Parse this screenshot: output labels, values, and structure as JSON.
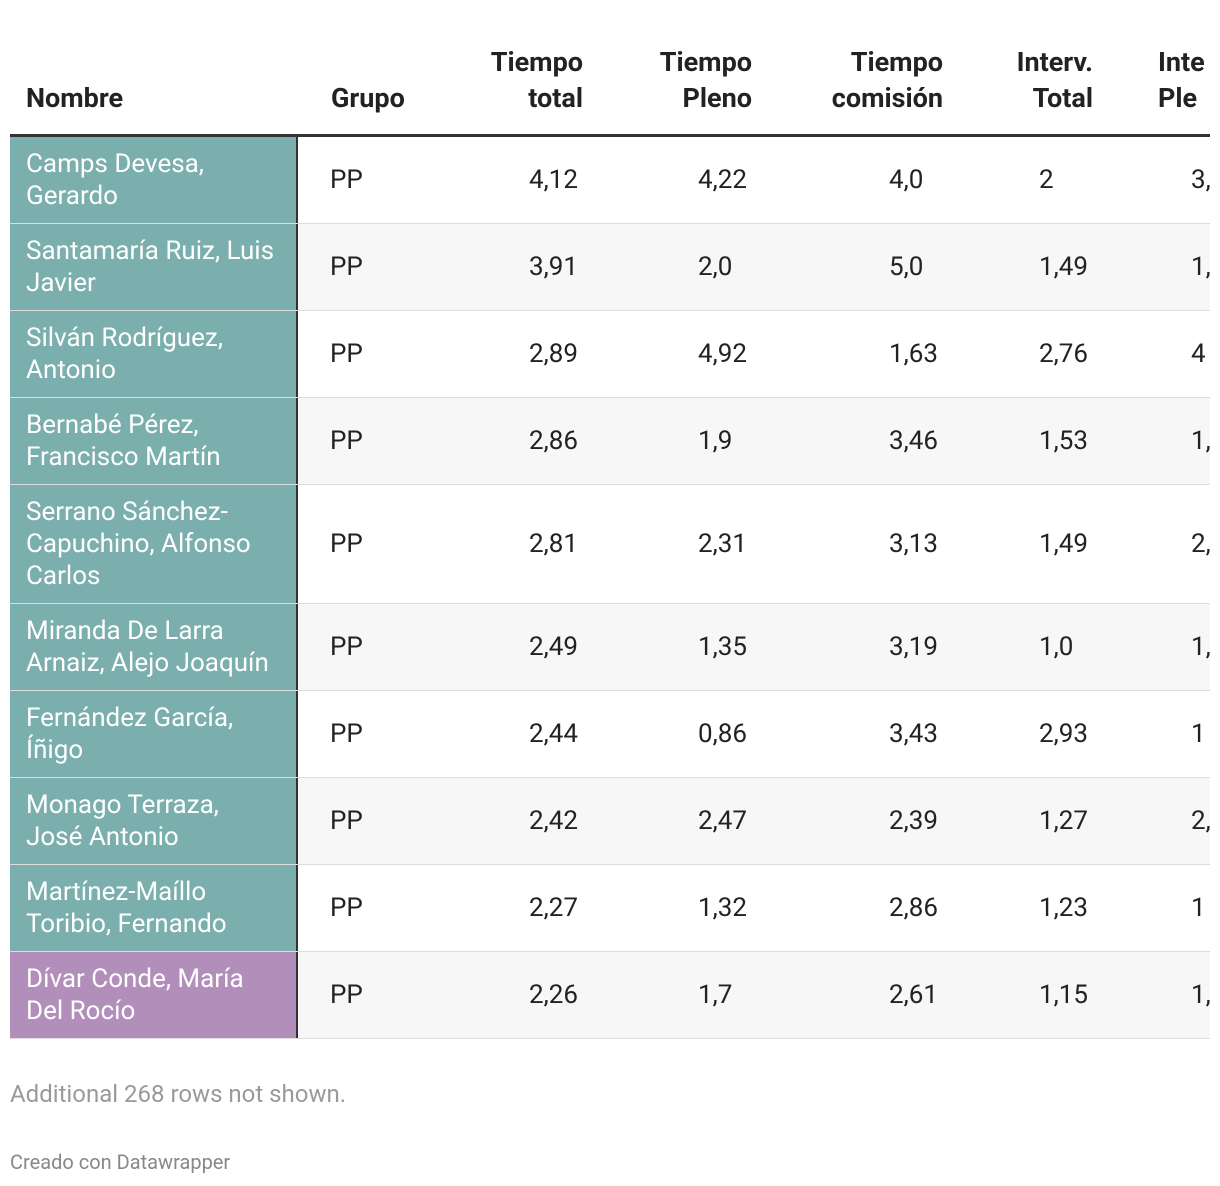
{
  "table": {
    "header": [
      "Nombre",
      "Grupo",
      "Tiempo total",
      "Tiempo Pleno",
      "Tiempo comisión",
      "Interv. Total",
      "Inte Ple"
    ],
    "rows": [
      [
        "Camps Devesa, Gerardo",
        "PP",
        "4,12",
        "4,22",
        "4,0",
        "2",
        "3,"
      ],
      [
        "Santamaría Ruiz, Luis Javier",
        "PP",
        "3,91",
        "2,0",
        "5,0",
        "1,49",
        "1,"
      ],
      [
        "Silván Rodríguez, Antonio",
        "PP",
        "2,89",
        "4,92",
        "1,63",
        "2,76",
        "4"
      ],
      [
        "Bernabé Pérez, Francisco Martín",
        "PP",
        "2,86",
        "1,9",
        "3,46",
        "1,53",
        "1,"
      ],
      [
        "Serrano Sánchez-Capuchino, Alfonso Carlos",
        "PP",
        "2,81",
        "2,31",
        "3,13",
        "1,49",
        "2,"
      ],
      [
        "Miranda De Larra Arnaiz, Alejo Joaquín",
        "PP",
        "2,49",
        "1,35",
        "3,19",
        "1,0",
        "1,"
      ],
      [
        "Fernández García, Íñigo",
        "PP",
        "2,44",
        "0,86",
        "3,43",
        "2,93",
        "1"
      ],
      [
        "Monago Terraza, José Antonio",
        "PP",
        "2,42",
        "2,47",
        "2,39",
        "1,27",
        "2,"
      ],
      [
        "Martínez-Maíllo Toribio, Fernando",
        "PP",
        "2,27",
        "1,32",
        "2,86",
        "1,23",
        "1"
      ],
      [
        "Dívar Conde, María Del Rocío",
        "PP",
        "2,26",
        "1,7",
        "2,61",
        "1,15",
        "1,"
      ]
    ],
    "name_colors": [
      "#7aafae",
      "#7aafae",
      "#7aafae",
      "#7aafae",
      "#7aafae",
      "#7aafae",
      "#7aafae",
      "#7aafae",
      "#7aafae",
      "#b28fbb"
    ]
  },
  "notes": "Additional 268 rows not shown.",
  "footer": "Creado con Datawrapper"
}
